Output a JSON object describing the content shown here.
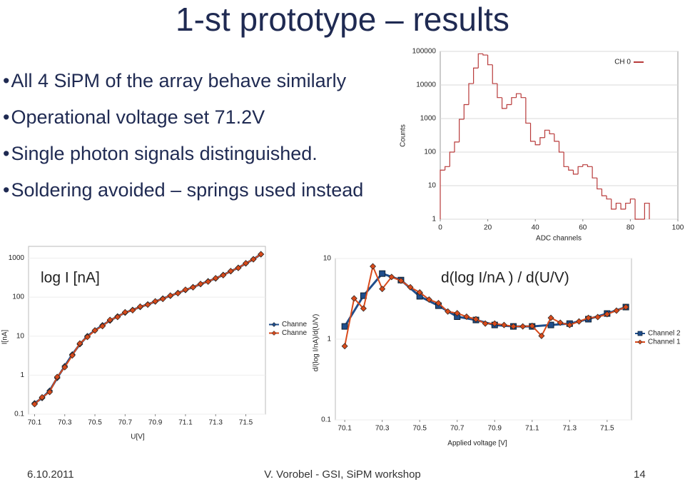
{
  "title": "1-st prototype – results",
  "bullets": [
    "All 4 SiPM of the array behave similarly",
    "Operational voltage set 71.2V",
    "Single photon signals distinguished.",
    "Soldering avoided – springs used instead"
  ],
  "footer": {
    "date": "6.10.2011",
    "author": "V. Vorobel - GSI, SiPM workshop",
    "page": "14"
  },
  "chart_data": [
    {
      "type": "histogram",
      "ylabel": "Counts",
      "xlabel": "ADC channels",
      "bins": [
        0,
        2,
        4,
        6,
        8,
        10,
        12,
        14,
        16,
        18,
        20,
        22,
        24,
        26,
        28,
        30,
        32,
        34,
        36,
        38,
        40,
        42,
        44,
        46,
        48,
        50,
        52,
        54,
        56,
        58,
        60,
        62,
        64,
        66,
        68,
        70,
        72,
        74,
        76,
        78,
        80,
        82,
        84,
        86,
        88
      ],
      "series": [
        {
          "name": "CH 0",
          "color": "#b83a3a",
          "values": [
            29,
            37,
            100,
            200,
            950,
            2600,
            11000,
            32000,
            85000,
            78000,
            40000,
            11000,
            4200,
            2000,
            2600,
            4200,
            5500,
            4200,
            730,
            210,
            165,
            270,
            450,
            350,
            210,
            100,
            37,
            29,
            22,
            37,
            42,
            37,
            17,
            8,
            5,
            4,
            2,
            3,
            2,
            3,
            4,
            1,
            1,
            3
          ]
        }
      ],
      "xlim": [
        0,
        100
      ],
      "ylim": [
        1,
        100000
      ],
      "xticks": [
        0,
        20,
        40,
        60,
        80,
        100
      ],
      "yticks": [
        1,
        10,
        100,
        1000,
        10000,
        100000
      ],
      "log_y": true,
      "grid": true,
      "legend": "upper right"
    },
    {
      "type": "line",
      "ylabel": "I[nA]",
      "xlabel": "U[V]",
      "annotation": "log I [nA]",
      "series": [
        {
          "name": "Channe",
          "color": "#1f4e8c",
          "marker": "diamond",
          "x": [
            70.1,
            70.15,
            70.2,
            70.25,
            70.3,
            70.35,
            70.4,
            70.45,
            70.5,
            70.55,
            70.6,
            70.65,
            70.7,
            70.75,
            70.8,
            70.85,
            70.9,
            70.95,
            71,
            71.05,
            71.1,
            71.15,
            71.2,
            71.25,
            71.3,
            71.35,
            71.4,
            71.45,
            71.5,
            71.55,
            71.6
          ],
          "values": [
            0.19,
            0.26,
            0.4,
            0.85,
            1.7,
            3.4,
            6.2,
            10,
            14,
            19,
            25,
            32,
            40,
            47,
            56,
            65,
            77,
            92,
            108,
            128,
            152,
            180,
            215,
            255,
            300,
            370,
            460,
            565,
            730,
            935,
            1250
          ]
        },
        {
          "name": "Channe",
          "color": "#d84a1b",
          "marker": "diamond",
          "x": [
            70.1,
            70.15,
            70.2,
            70.25,
            70.3,
            70.35,
            70.4,
            70.45,
            70.5,
            70.55,
            70.6,
            70.65,
            70.7,
            70.75,
            70.8,
            70.85,
            70.9,
            70.95,
            71,
            71.05,
            71.1,
            71.15,
            71.2,
            71.25,
            71.3,
            71.35,
            71.4,
            71.45,
            71.5,
            71.55,
            71.6
          ],
          "values": [
            0.18,
            0.27,
            0.37,
            0.9,
            1.6,
            3.2,
            6.5,
            9.5,
            14,
            18,
            26,
            31,
            41,
            46,
            57,
            64,
            78,
            90,
            110,
            126,
            155,
            178,
            218,
            250,
            305,
            365,
            465,
            560,
            740,
            930,
            1260
          ]
        }
      ],
      "xlim": [
        70.06,
        71.63
      ],
      "ylim": [
        0.1,
        2000
      ],
      "xticks": [
        70.1,
        70.3,
        70.5,
        70.7,
        70.9,
        71.1,
        71.3,
        71.5
      ],
      "yticks": [
        0.1,
        1,
        10,
        100,
        1000
      ],
      "log_y": true,
      "grid": true,
      "legend": "right"
    },
    {
      "type": "line",
      "ylabel": "d/(log I/nA)/d(U/V)",
      "xlabel": "Applied voltage [V]",
      "annotation": "d(log I/nA ) / d(U/V)",
      "series": [
        {
          "name": "Channel 2",
          "color": "#1f4e8c",
          "marker": "square",
          "x": [
            70.1,
            70.2,
            70.3,
            70.4,
            70.5,
            70.6,
            70.7,
            70.8,
            70.9,
            71,
            71.1,
            71.2,
            71.3,
            71.4,
            71.5,
            71.6
          ],
          "values": [
            1.44,
            3.46,
            6.5,
            5.4,
            3.4,
            2.6,
            1.9,
            1.73,
            1.5,
            1.44,
            1.44,
            1.5,
            1.56,
            1.77,
            2.08,
            2.5
          ]
        },
        {
          "name": "Channel 1",
          "color": "#d84a1b",
          "marker": "diamond",
          "x": [
            70.1,
            70.15,
            70.2,
            70.25,
            70.3,
            70.35,
            70.4,
            70.45,
            70.5,
            70.55,
            70.6,
            70.65,
            70.7,
            70.75,
            70.8,
            70.85,
            70.9,
            70.95,
            71,
            71.05,
            71.1,
            71.15,
            71.2,
            71.25,
            71.3,
            71.35,
            71.4,
            71.45,
            71.5,
            71.55,
            71.6
          ],
          "values": [
            0.82,
            3.2,
            2.4,
            8,
            4.2,
            5.9,
            5.3,
            4.4,
            3.8,
            3.1,
            2.8,
            2.2,
            2.1,
            1.9,
            1.77,
            1.56,
            1.56,
            1.5,
            1.44,
            1.44,
            1.46,
            1.1,
            1.84,
            1.6,
            1.5,
            1.66,
            1.84,
            1.88,
            2.04,
            2.26,
            2.5
          ]
        }
      ],
      "xlim": [
        70.05,
        71.63
      ],
      "ylim": [
        0.1,
        10
      ],
      "xticks": [
        70.1,
        70.3,
        70.5,
        70.7,
        70.9,
        71.1,
        71.3,
        71.5
      ],
      "yticks": [
        0.1,
        1,
        10
      ],
      "log_y": true,
      "grid": true,
      "legend": "right"
    }
  ]
}
